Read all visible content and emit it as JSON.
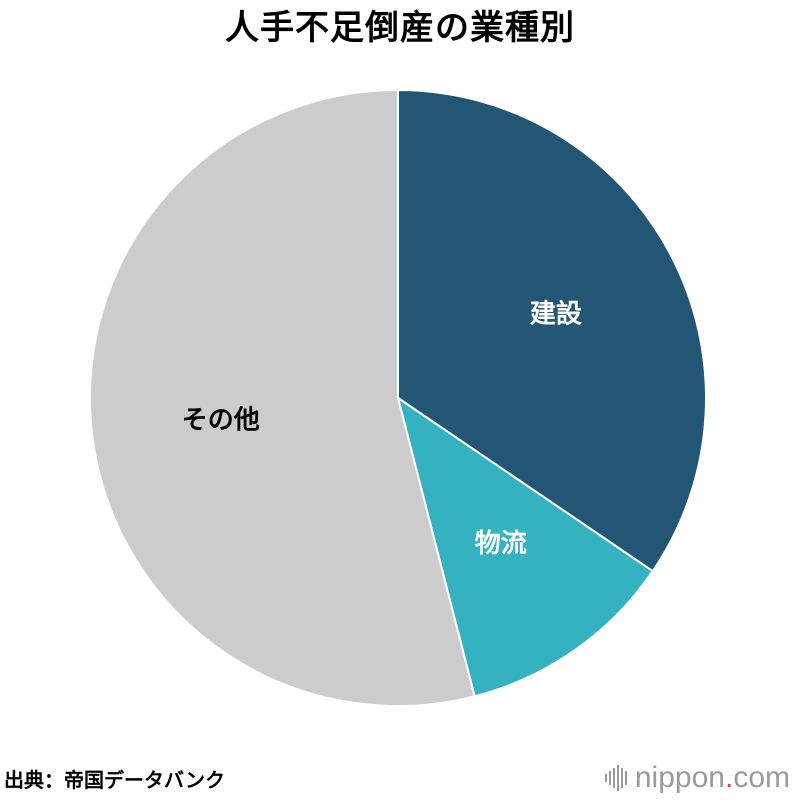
{
  "title": "人手不足倒産の業種別",
  "source": "出典：帝国データバンク",
  "brand": {
    "prefix": "nippon",
    "dot": ".",
    "suffix": "com",
    "icon": "sound-wave-icon"
  },
  "chart_data": {
    "type": "pie",
    "title": "人手不足倒産の業種別",
    "start_angle": "12 o'clock",
    "direction": "clockwise",
    "slices": [
      {
        "label": "建設",
        "value": 34.5,
        "color": "#235674",
        "label_color": "#ffffff"
      },
      {
        "label": "物流",
        "value": 11.5,
        "color": "#34b2c0",
        "label_color": "#ffffff"
      },
      {
        "label": "その他",
        "value": 54.0,
        "color": "#cccccc",
        "label_color": "#000000"
      }
    ]
  }
}
